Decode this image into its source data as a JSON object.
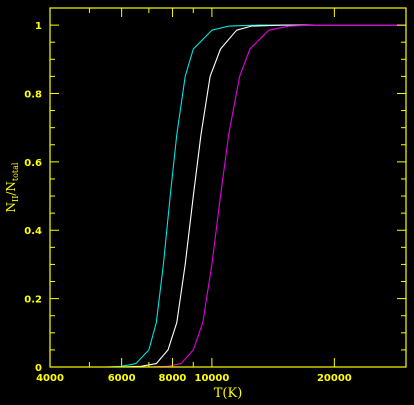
{
  "chart_data": {
    "type": "line",
    "xscale": "log",
    "xlabel": "T(K)",
    "ylabel": {
      "main": "N",
      "sub1": "II",
      "mid": "/N",
      "sub2": "total"
    },
    "xlim": [
      4000,
      30000
    ],
    "ylim": [
      0,
      1.05
    ],
    "xticks_major": [
      4000,
      6000,
      8000,
      10000,
      20000
    ],
    "xtick_labels": [
      "4000",
      "6000",
      "8000",
      "10000",
      "20000"
    ],
    "xticks_minor": [
      5000,
      7000,
      9000,
      30000
    ],
    "yticks_major": [
      0,
      0.2,
      0.4,
      0.6,
      0.8,
      1
    ],
    "ytick_labels": [
      "0",
      "0.2",
      "0.4",
      "0.6",
      "0.8",
      "1"
    ],
    "grid": false,
    "colors": {
      "background": "#000000",
      "axes": "#ffff00",
      "labels": "#ffff00"
    },
    "series": [
      {
        "color": "#00e5e5",
        "points": [
          [
            4000,
            0
          ],
          [
            5500,
            0.0
          ],
          [
            6000,
            0.002
          ],
          [
            6500,
            0.01
          ],
          [
            7000,
            0.05
          ],
          [
            7300,
            0.13
          ],
          [
            7600,
            0.3
          ],
          [
            7900,
            0.5
          ],
          [
            8200,
            0.68
          ],
          [
            8600,
            0.85
          ],
          [
            9000,
            0.93
          ],
          [
            10000,
            0.985
          ],
          [
            11000,
            0.997
          ],
          [
            13000,
            1
          ],
          [
            30000,
            1
          ]
        ]
      },
      {
        "color": "#ffffff",
        "points": [
          [
            4000,
            0
          ],
          [
            6000,
            0.0
          ],
          [
            6700,
            0.002
          ],
          [
            7300,
            0.01
          ],
          [
            7800,
            0.05
          ],
          [
            8200,
            0.13
          ],
          [
            8600,
            0.3
          ],
          [
            9000,
            0.5
          ],
          [
            9400,
            0.68
          ],
          [
            9900,
            0.85
          ],
          [
            10500,
            0.93
          ],
          [
            11500,
            0.985
          ],
          [
            12500,
            0.997
          ],
          [
            15000,
            1
          ],
          [
            30000,
            1
          ]
        ]
      },
      {
        "color": "#e000e0",
        "points": [
          [
            4000,
            0
          ],
          [
            7000,
            0.0
          ],
          [
            7800,
            0.002
          ],
          [
            8400,
            0.01
          ],
          [
            9000,
            0.05
          ],
          [
            9500,
            0.13
          ],
          [
            10000,
            0.3
          ],
          [
            10500,
            0.5
          ],
          [
            11000,
            0.68
          ],
          [
            11700,
            0.85
          ],
          [
            12400,
            0.93
          ],
          [
            13800,
            0.985
          ],
          [
            15500,
            0.997
          ],
          [
            18000,
            1
          ],
          [
            30000,
            1
          ]
        ]
      }
    ]
  }
}
